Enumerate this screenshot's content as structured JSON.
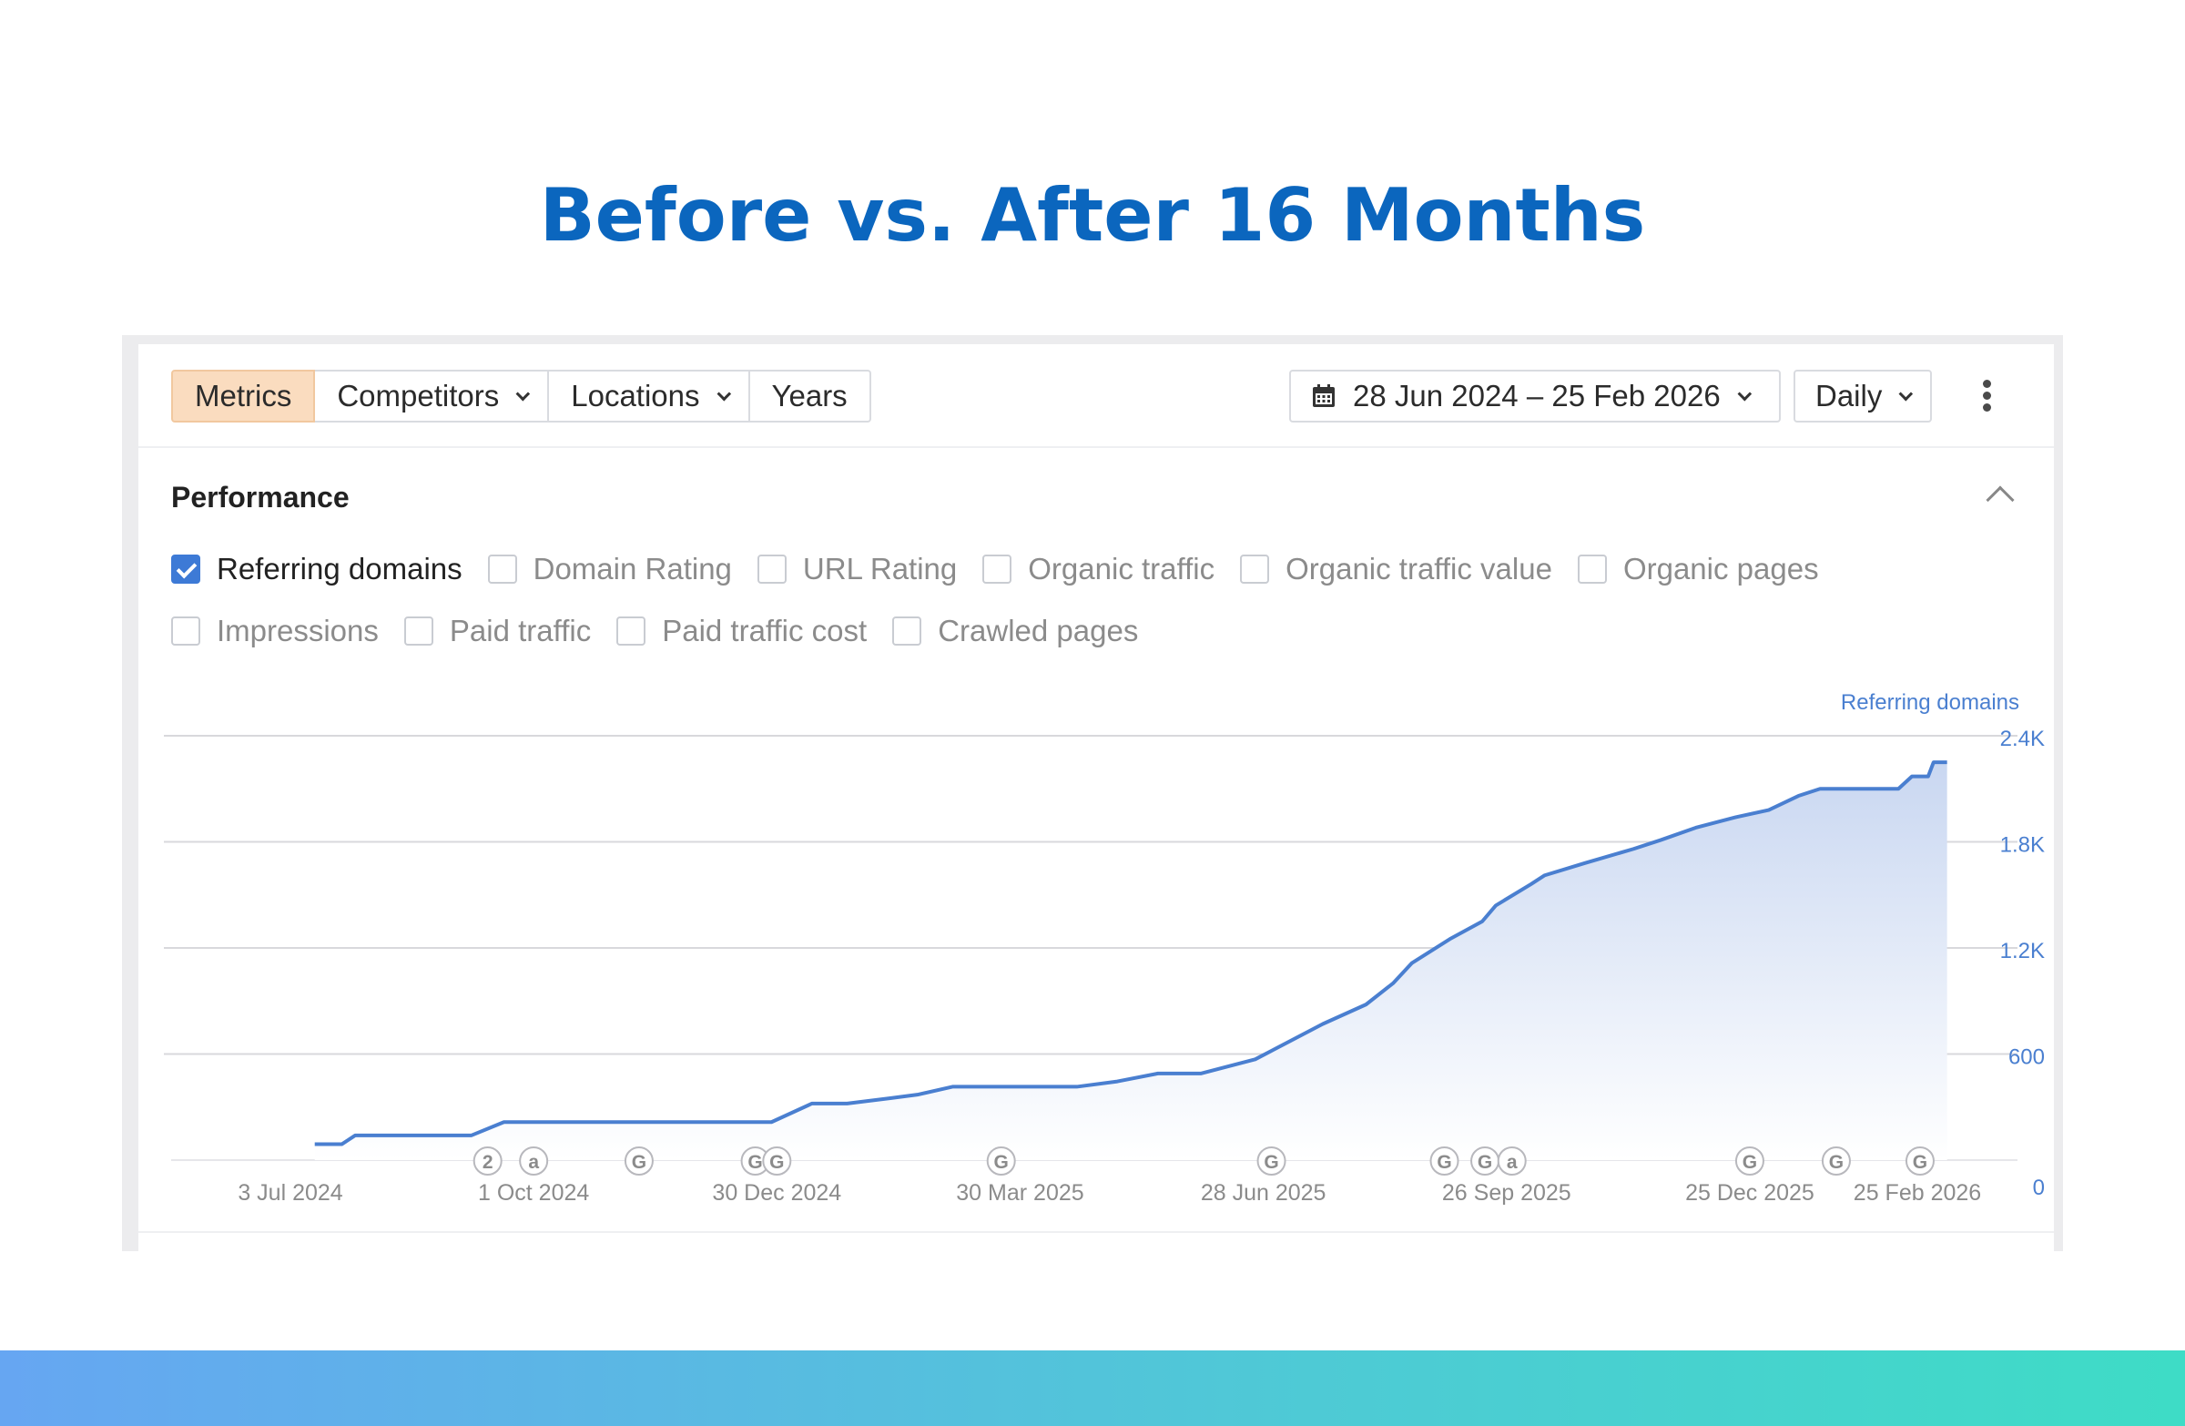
{
  "headline": "Before vs. After 16 Months",
  "toolbar": {
    "tabs": [
      {
        "label": "Metrics",
        "active": true,
        "dropdown": false
      },
      {
        "label": "Competitors",
        "active": false,
        "dropdown": true
      },
      {
        "label": "Locations",
        "active": false,
        "dropdown": true
      },
      {
        "label": "Years",
        "active": false,
        "dropdown": false
      }
    ],
    "date_range": "28 Jun 2024 – 25 Feb 2026",
    "granularity": "Daily"
  },
  "performance": {
    "title": "Performance",
    "metrics_row1": [
      {
        "label": "Referring domains",
        "checked": true
      },
      {
        "label": "Domain Rating",
        "checked": false
      },
      {
        "label": "URL Rating",
        "checked": false
      },
      {
        "label": "Organic traffic",
        "checked": false
      },
      {
        "label": "Organic traffic value",
        "checked": false
      },
      {
        "label": "Organic pages",
        "checked": false
      }
    ],
    "metrics_row2": [
      {
        "label": "Impressions",
        "checked": false
      },
      {
        "label": "Paid traffic",
        "checked": false
      },
      {
        "label": "Paid traffic cost",
        "checked": false
      },
      {
        "label": "Crawled pages",
        "checked": false
      }
    ]
  },
  "chart_data": {
    "type": "area",
    "series": [
      {
        "name": "Referring domains",
        "color": "#4a7fd0"
      }
    ],
    "ylabel": "Referring domains",
    "ylim": [
      0,
      2400
    ],
    "y_ticks": [
      {
        "value": 2400,
        "label": "2.4K"
      },
      {
        "value": 1800,
        "label": "1.8K"
      },
      {
        "value": 1200,
        "label": "1.2K"
      },
      {
        "value": 600,
        "label": "600"
      },
      {
        "value": 0,
        "label": "0"
      }
    ],
    "x_range": [
      "2024-06-28",
      "2026-02-25"
    ],
    "x_ticks": [
      {
        "date": "2024-07-03",
        "label": "3 Jul 2024"
      },
      {
        "date": "2024-10-01",
        "label": "1 Oct 2024"
      },
      {
        "date": "2024-12-30",
        "label": "30 Dec 2024"
      },
      {
        "date": "2025-03-30",
        "label": "30 Mar 2025"
      },
      {
        "date": "2025-06-28",
        "label": "28 Jun 2025"
      },
      {
        "date": "2025-09-26",
        "label": "26 Sep 2025"
      },
      {
        "date": "2025-12-25",
        "label": "25 Dec 2025"
      },
      {
        "date": "2026-02-25",
        "label": "25 Feb 2026"
      }
    ],
    "points": [
      [
        "2024-07-12",
        90
      ],
      [
        "2024-07-22",
        90
      ],
      [
        "2024-07-27",
        140
      ],
      [
        "2024-08-10",
        140
      ],
      [
        "2024-08-30",
        140
      ],
      [
        "2024-09-08",
        140
      ],
      [
        "2024-09-20",
        215
      ],
      [
        "2024-10-10",
        215
      ],
      [
        "2024-11-10",
        215
      ],
      [
        "2024-12-20",
        215
      ],
      [
        "2024-12-28",
        215
      ],
      [
        "2025-01-12",
        320
      ],
      [
        "2025-01-25",
        320
      ],
      [
        "2025-02-10",
        350
      ],
      [
        "2025-02-20",
        370
      ],
      [
        "2025-03-05",
        415
      ],
      [
        "2025-03-20",
        415
      ],
      [
        "2025-04-20",
        415
      ],
      [
        "2025-05-05",
        445
      ],
      [
        "2025-05-20",
        490
      ],
      [
        "2025-06-05",
        490
      ],
      [
        "2025-06-25",
        570
      ],
      [
        "2025-07-20",
        770
      ],
      [
        "2025-08-05",
        880
      ],
      [
        "2025-08-15",
        1000
      ],
      [
        "2025-08-22",
        1115
      ],
      [
        "2025-09-05",
        1250
      ],
      [
        "2025-09-17",
        1350
      ],
      [
        "2025-09-22",
        1440
      ],
      [
        "2025-10-05",
        1560
      ],
      [
        "2025-10-10",
        1610
      ],
      [
        "2025-10-25",
        1680
      ],
      [
        "2025-11-12",
        1760
      ],
      [
        "2025-11-22",
        1810
      ],
      [
        "2025-12-05",
        1880
      ],
      [
        "2025-12-20",
        1940
      ],
      [
        "2026-01-01",
        1980
      ],
      [
        "2026-01-12",
        2060
      ],
      [
        "2026-01-20",
        2100
      ],
      [
        "2026-02-01",
        2100
      ],
      [
        "2026-02-10",
        2100
      ],
      [
        "2026-02-18",
        2100
      ],
      [
        "2026-02-23",
        2170
      ],
      [
        "2026-02-26",
        2170
      ],
      [
        "2026-03-01",
        2170
      ],
      [
        "2026-03-03",
        2250
      ],
      [
        "2026-03-08",
        2250
      ]
    ],
    "annotations": [
      {
        "date": "2024-09-14",
        "label": "2"
      },
      {
        "date": "2024-10-01",
        "label": "a"
      },
      {
        "date": "2024-11-09",
        "label": "G"
      },
      {
        "date": "2024-12-22",
        "label": "G"
      },
      {
        "date": "2024-12-30",
        "label": "G"
      },
      {
        "date": "2025-03-23",
        "label": "G"
      },
      {
        "date": "2025-07-01",
        "label": "G"
      },
      {
        "date": "2025-09-03",
        "label": "G"
      },
      {
        "date": "2025-09-18",
        "label": "G"
      },
      {
        "date": "2025-09-28",
        "label": "a"
      },
      {
        "date": "2025-12-25",
        "label": "G"
      },
      {
        "date": "2026-01-26",
        "label": "G"
      },
      {
        "date": "2026-02-26",
        "label": "G"
      }
    ],
    "grid": true,
    "legend": "none"
  }
}
